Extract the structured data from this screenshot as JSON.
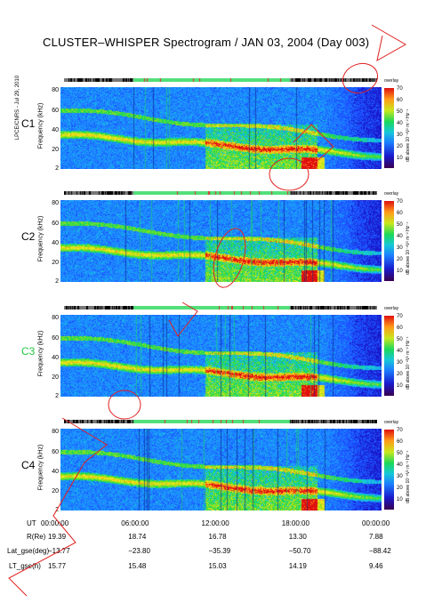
{
  "title": "CLUSTER–WHISPER Spectrogram / JAN 03, 2004 (Day 003)",
  "credit": "LPCE/CNRS - Jul 29, 2010",
  "ylabel": "Frequency (kHz)",
  "yticks": [
    "80",
    "60",
    "40",
    "20",
    "2"
  ],
  "colorbar": {
    "label": "dB above 10⁻⁸V² m⁻² Hz⁻¹",
    "ticks": [
      "70",
      "60",
      "50",
      "40",
      "30",
      "20",
      "10"
    ],
    "status_label": "overlay"
  },
  "chart_data": {
    "type": "heatmap",
    "title": "CLUSTER–WHISPER Spectrogram / JAN 03, 2004 (Day 003)",
    "xlabel": "UT",
    "ylabel": "Frequency (kHz)",
    "ylim": [
      2,
      80
    ],
    "color_range_db": [
      10,
      70
    ],
    "x_ticks": [
      "00:00:00",
      "06:00:00",
      "12:00:00",
      "18:00:00",
      "00:00:00"
    ],
    "panels": [
      {
        "name": "C1",
        "label_color": "#000000"
      },
      {
        "name": "C2",
        "label_color": "#000000"
      },
      {
        "name": "C3",
        "label_color": "#22cc44"
      },
      {
        "name": "C4",
        "label_color": "#000000"
      }
    ],
    "orbit_rows": [
      {
        "label": "R(Re)",
        "values": [
          "19.39",
          "18.74",
          "16.78",
          "13.30",
          "7.88"
        ]
      },
      {
        "label": "Lat_gse(deg)",
        "values": [
          "−13.77",
          "−23.80",
          "−35.39",
          "−50.70",
          "−88.42"
        ]
      },
      {
        "label": "LT_gse(h)",
        "values": [
          "15.77",
          "15.48",
          "15.03",
          "14.19",
          "9.46"
        ]
      }
    ]
  }
}
